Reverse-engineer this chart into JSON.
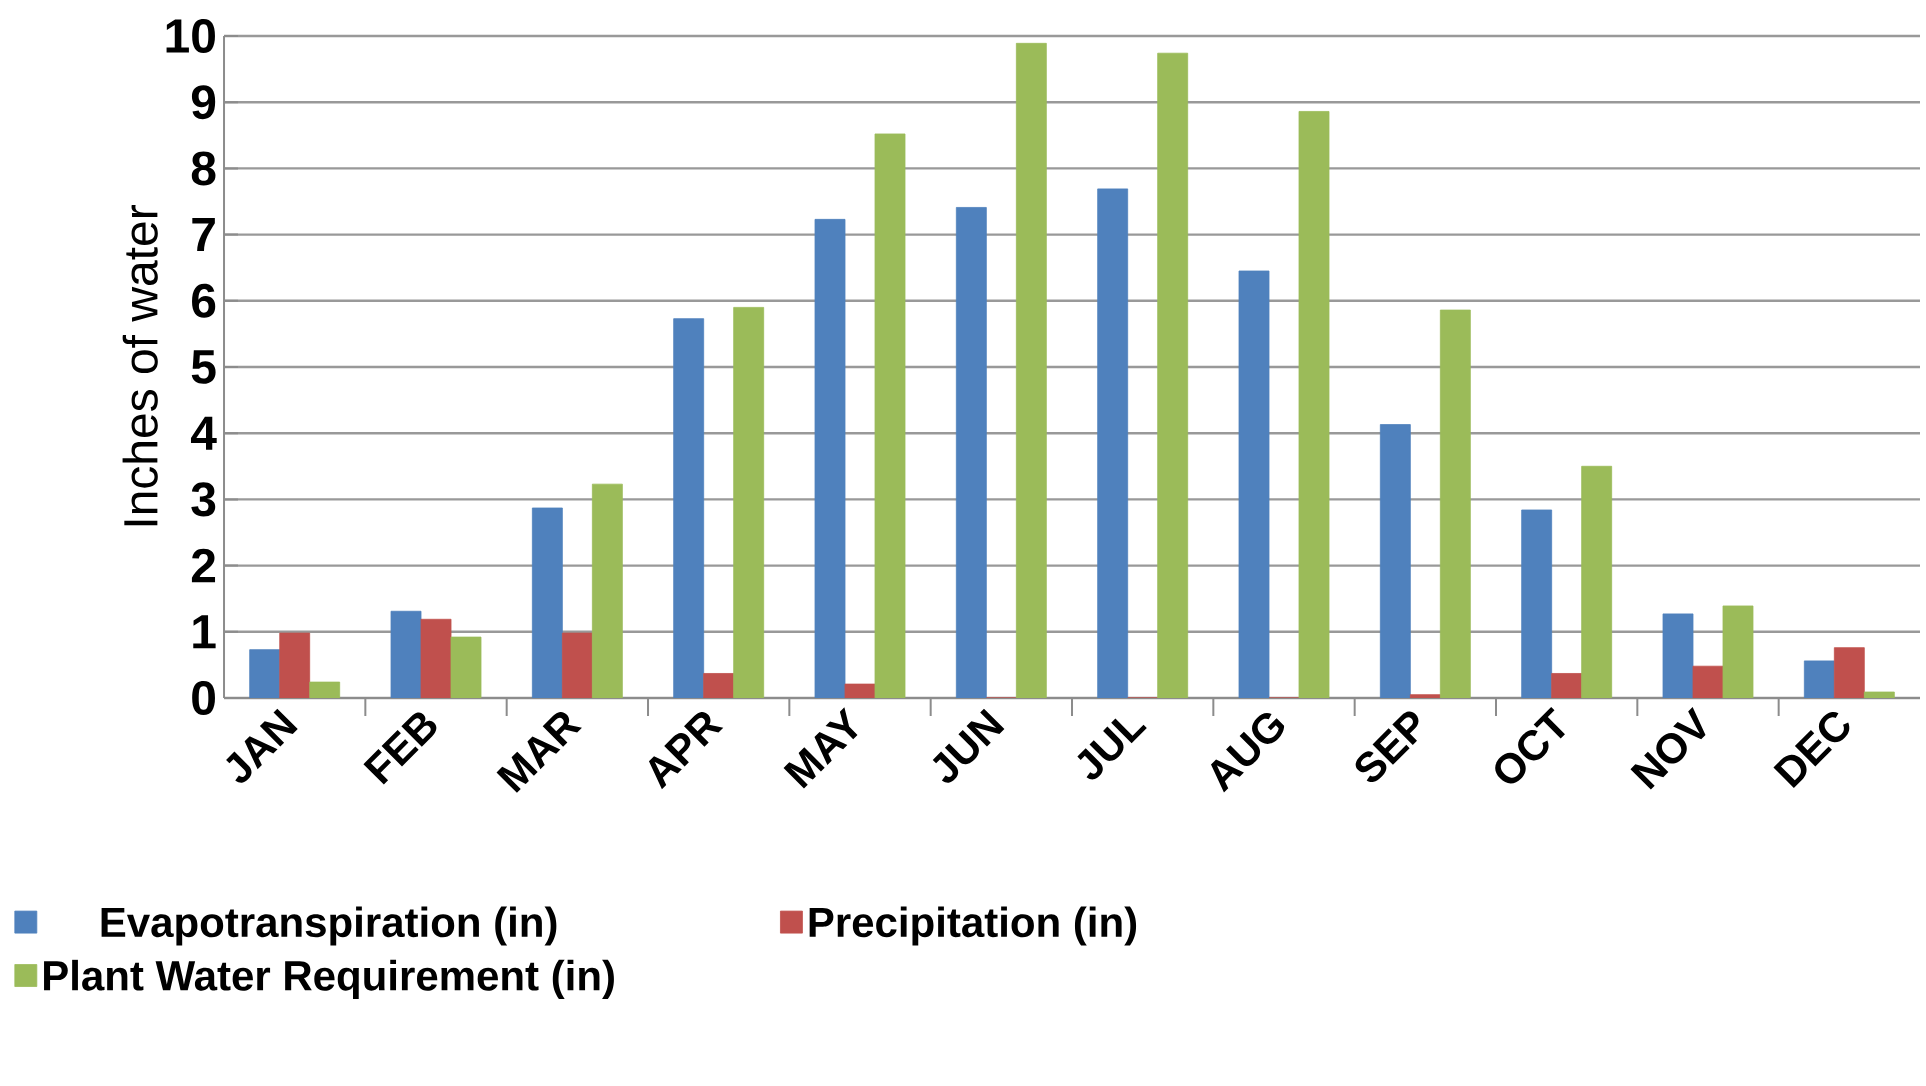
{
  "chart_data": {
    "type": "bar",
    "ylabel": "Inches of water",
    "categories": [
      "JAN",
      "FEB",
      "MAR",
      "APR",
      "MAY",
      "JUN",
      "JUL",
      "AUG",
      "SEP",
      "OCT",
      "NOV",
      "DEC"
    ],
    "series": [
      {
        "name": "Evapotranspiration (in)",
        "color": "#4f81bd",
        "values": [
          0.73,
          1.31,
          2.87,
          5.73,
          7.23,
          7.41,
          7.69,
          6.45,
          4.13,
          2.84,
          1.27,
          0.56
        ]
      },
      {
        "name": "Precipitation (in)",
        "color": "#c0504d",
        "values": [
          0.98,
          1.19,
          0.98,
          0.37,
          0.21,
          0,
          0,
          0,
          0.05,
          0.37,
          0.48,
          0.76
        ]
      },
      {
        "name": "Plant Water Requirement (in)",
        "color": "#9bbb59",
        "values": [
          0.24,
          0.92,
          3.23,
          5.9,
          8.52,
          9.89,
          9.74,
          8.86,
          5.86,
          3.5,
          1.39,
          0.09
        ]
      }
    ],
    "ylim": [
      0,
      10
    ],
    "yticks": [
      0,
      1,
      2,
      3,
      4,
      5,
      6,
      7,
      8,
      9,
      10
    ],
    "grid": "y",
    "legend": "bottom"
  }
}
